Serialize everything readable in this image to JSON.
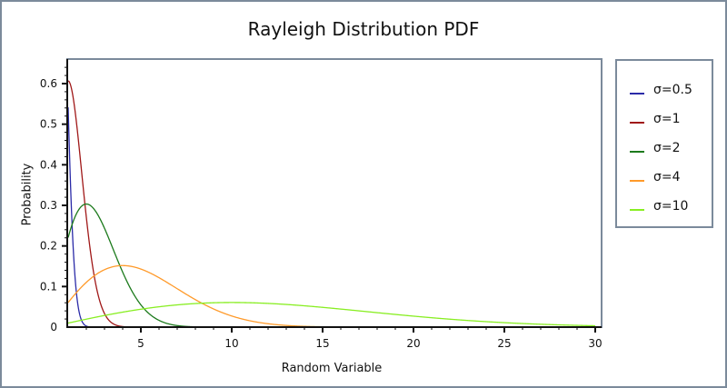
{
  "chart_data": {
    "type": "line",
    "title": "Rayleigh Distribution PDF",
    "xlabel": "Random Variable",
    "ylabel": "Probability",
    "xlim": [
      1,
      30
    ],
    "ylim": [
      0,
      0.66
    ],
    "x_ticks": [
      5,
      10,
      15,
      20,
      25,
      30
    ],
    "y_ticks": [
      0,
      0.1,
      0.2,
      0.3,
      0.4,
      0.5,
      0.6
    ],
    "y_tick_labels": [
      "0",
      "0.1",
      "0.2",
      "0.3",
      "0.4",
      "0.5",
      "0.6"
    ],
    "grid": false,
    "legend_position": "right",
    "function": "f(x) = (x / sigma^2) * exp(-x^2 / (2 sigma^2))",
    "series": [
      {
        "name": "σ=0.5",
        "sigma": 0.5,
        "color": "#2b2ba8",
        "x": [
          1,
          1.5,
          2,
          2.5,
          3
        ],
        "values": [
          0.541,
          0.074,
          0.003,
          0.0,
          0.0
        ]
      },
      {
        "name": "σ=1",
        "sigma": 1,
        "color": "#a01818",
        "x": [
          1,
          2,
          3,
          4,
          5
        ],
        "values": [
          0.607,
          0.271,
          0.033,
          0.001,
          0.0
        ]
      },
      {
        "name": "σ=2",
        "sigma": 2,
        "color": "#1c7a1c",
        "x": [
          1,
          2,
          3,
          4,
          5,
          6,
          7,
          8
        ],
        "values": [
          0.221,
          0.303,
          0.243,
          0.135,
          0.055,
          0.017,
          0.004,
          0.001
        ]
      },
      {
        "name": "σ=4",
        "sigma": 4,
        "color": "#ff9a2a",
        "x": [
          1,
          2,
          4,
          6,
          8,
          10,
          12,
          14,
          16
        ],
        "values": [
          0.061,
          0.11,
          0.152,
          0.122,
          0.068,
          0.027,
          0.008,
          0.002,
          0.0
        ]
      },
      {
        "name": "σ=10",
        "sigma": 10,
        "color": "#88ee22",
        "x": [
          1,
          5,
          10,
          15,
          20,
          25,
          30
        ],
        "values": [
          0.01,
          0.044,
          0.061,
          0.049,
          0.027,
          0.011,
          0.003
        ]
      }
    ]
  },
  "legend": {
    "items": [
      "σ=0.5",
      "σ=1",
      "σ=2",
      "σ=4",
      "σ=10"
    ]
  }
}
